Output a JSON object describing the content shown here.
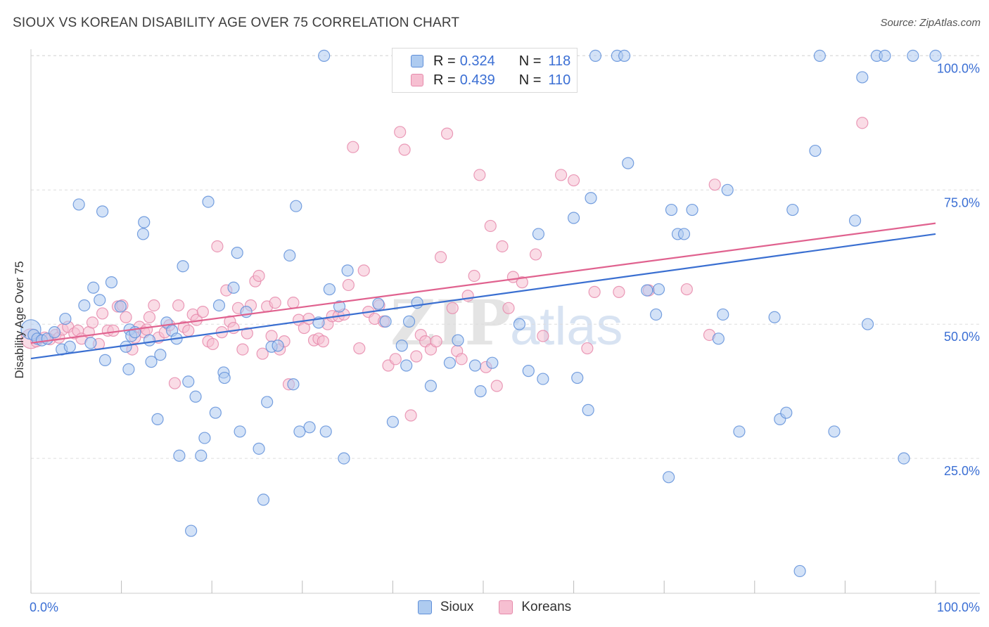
{
  "title": "SIOUX VS KOREAN DISABILITY AGE OVER 75 CORRELATION CHART",
  "source": "Source: ZipAtlas.com",
  "watermark": {
    "zip": "ZIP",
    "atlas": "atlas"
  },
  "colors": {
    "sioux_fill": "#aecbf0",
    "sioux_stroke": "#5f8fd9",
    "sioux_line": "#3a6fd1",
    "koreans_fill": "#f6bfd1",
    "koreans_stroke": "#e68aab",
    "koreans_line": "#e0628f",
    "axis_text": "#3b6fd4",
    "grid": "#dddddd"
  },
  "legend": {
    "rows": [
      {
        "r_label": "R =",
        "r_value": "0.324",
        "n_label": "N =",
        "n_value": "118"
      },
      {
        "r_label": "R =",
        "r_value": "0.439",
        "n_label": "N =",
        "n_value": "110"
      }
    ]
  },
  "chart_data": {
    "type": "scatter",
    "title": "SIOUX VS KOREAN DISABILITY AGE OVER 75 CORRELATION CHART",
    "xlabel": "",
    "ylabel": "Disability Age Over 75",
    "xlim": [
      0,
      100
    ],
    "ylim": [
      0,
      103
    ],
    "x_tick_labels": [
      "0.0%",
      "100.0%"
    ],
    "y_ticks": [
      25,
      50,
      75,
      100
    ],
    "y_tick_labels": [
      "25.0%",
      "50.0%",
      "75.0%",
      "100.0%"
    ],
    "grid": "horizontal dashed",
    "legend_position": "top-center",
    "series": [
      {
        "name": "Sioux",
        "r": 0.324,
        "n": 118,
        "trend": {
          "x": [
            0,
            100
          ],
          "y": [
            43.6,
            66.8
          ]
        },
        "points": [
          [
            0.0,
            49.0
          ],
          [
            0.3,
            48.0
          ],
          [
            0.7,
            47.3
          ],
          [
            1.2,
            47.0
          ],
          [
            1.8,
            47.3
          ],
          [
            2.6,
            48.5
          ],
          [
            3.4,
            45.3
          ],
          [
            3.8,
            51.0
          ],
          [
            4.3,
            45.8
          ],
          [
            5.3,
            72.3
          ],
          [
            5.9,
            53.5
          ],
          [
            6.6,
            46.5
          ],
          [
            6.9,
            56.8
          ],
          [
            7.6,
            54.5
          ],
          [
            7.9,
            71.0
          ],
          [
            8.2,
            43.3
          ],
          [
            8.9,
            57.8
          ],
          [
            9.9,
            53.3
          ],
          [
            10.5,
            45.8
          ],
          [
            10.8,
            41.6
          ],
          [
            10.9,
            49.0
          ],
          [
            11.1,
            47.8
          ],
          [
            11.5,
            48.5
          ],
          [
            12.4,
            66.8
          ],
          [
            12.5,
            69.0
          ],
          [
            13.1,
            47.0
          ],
          [
            13.3,
            43.0
          ],
          [
            14.0,
            32.3
          ],
          [
            14.3,
            44.3
          ],
          [
            15.0,
            50.3
          ],
          [
            15.6,
            48.8
          ],
          [
            16.1,
            47.3
          ],
          [
            16.4,
            25.5
          ],
          [
            16.8,
            60.8
          ],
          [
            17.4,
            39.3
          ],
          [
            17.7,
            11.5
          ],
          [
            18.2,
            36.5
          ],
          [
            18.8,
            25.5
          ],
          [
            19.2,
            28.8
          ],
          [
            19.6,
            72.8
          ],
          [
            20.4,
            33.5
          ],
          [
            20.8,
            53.5
          ],
          [
            21.3,
            41.0
          ],
          [
            21.4,
            40.0
          ],
          [
            22.4,
            56.8
          ],
          [
            22.8,
            63.3
          ],
          [
            23.1,
            30.0
          ],
          [
            23.8,
            52.3
          ],
          [
            25.2,
            26.8
          ],
          [
            25.7,
            17.3
          ],
          [
            26.1,
            35.5
          ],
          [
            26.6,
            45.8
          ],
          [
            27.3,
            46.0
          ],
          [
            28.6,
            62.8
          ],
          [
            29.0,
            38.8
          ],
          [
            29.3,
            72.0
          ],
          [
            29.7,
            30.0
          ],
          [
            30.8,
            30.8
          ],
          [
            31.8,
            50.3
          ],
          [
            32.4,
            100.0
          ],
          [
            32.6,
            30.0
          ],
          [
            33.0,
            56.5
          ],
          [
            34.1,
            53.3
          ],
          [
            34.6,
            25.0
          ],
          [
            35.0,
            60.0
          ],
          [
            38.4,
            53.8
          ],
          [
            39.2,
            50.5
          ],
          [
            40.0,
            31.8
          ],
          [
            41.0,
            46.0
          ],
          [
            41.5,
            42.3
          ],
          [
            41.8,
            50.5
          ],
          [
            42.7,
            54.0
          ],
          [
            44.2,
            38.5
          ],
          [
            45.0,
            100.0
          ],
          [
            46.3,
            42.8
          ],
          [
            47.2,
            47.0
          ],
          [
            49.1,
            42.3
          ],
          [
            49.7,
            37.5
          ],
          [
            51.0,
            42.8
          ],
          [
            54.0,
            50.0
          ],
          [
            55.0,
            41.3
          ],
          [
            56.1,
            66.8
          ],
          [
            56.6,
            39.8
          ],
          [
            60.0,
            69.8
          ],
          [
            60.4,
            40.0
          ],
          [
            61.6,
            34.0
          ],
          [
            61.9,
            73.5
          ],
          [
            62.4,
            100.0
          ],
          [
            64.8,
            100.0
          ],
          [
            65.6,
            100.0
          ],
          [
            66.0,
            80.0
          ],
          [
            68.1,
            56.3
          ],
          [
            69.1,
            51.8
          ],
          [
            69.4,
            56.5
          ],
          [
            70.5,
            21.5
          ],
          [
            70.8,
            71.3
          ],
          [
            71.5,
            66.8
          ],
          [
            72.2,
            66.8
          ],
          [
            73.1,
            71.3
          ],
          [
            76.0,
            47.3
          ],
          [
            76.5,
            51.8
          ],
          [
            77.0,
            75.0
          ],
          [
            78.3,
            30.0
          ],
          [
            82.2,
            51.3
          ],
          [
            82.8,
            32.3
          ],
          [
            83.5,
            33.5
          ],
          [
            84.2,
            71.3
          ],
          [
            85.0,
            4.0
          ],
          [
            86.7,
            82.3
          ],
          [
            87.2,
            100.0
          ],
          [
            88.8,
            30.0
          ],
          [
            91.1,
            69.3
          ],
          [
            91.9,
            96.0
          ],
          [
            92.5,
            50.0
          ],
          [
            93.5,
            100.0
          ],
          [
            94.4,
            100.0
          ],
          [
            96.5,
            25.0
          ],
          [
            97.5,
            100.0
          ],
          [
            100.0,
            100.0
          ]
        ]
      },
      {
        "name": "Koreans",
        "r": 0.439,
        "n": 110,
        "trend": {
          "x": [
            0,
            100
          ],
          "y": [
            46.5,
            68.8
          ]
        },
        "points": [
          [
            0.0,
            47.3
          ],
          [
            0.6,
            46.8
          ],
          [
            1.5,
            47.5
          ],
          [
            2.1,
            47.2
          ],
          [
            2.7,
            48.0
          ],
          [
            3.1,
            47.5
          ],
          [
            3.5,
            49.0
          ],
          [
            4.1,
            49.5
          ],
          [
            4.8,
            48.3
          ],
          [
            5.2,
            48.8
          ],
          [
            5.6,
            47.3
          ],
          [
            6.4,
            48.5
          ],
          [
            6.8,
            50.3
          ],
          [
            7.5,
            46.3
          ],
          [
            7.9,
            52.0
          ],
          [
            8.5,
            48.8
          ],
          [
            9.1,
            48.8
          ],
          [
            9.6,
            53.3
          ],
          [
            10.1,
            53.5
          ],
          [
            10.5,
            51.3
          ],
          [
            11.2,
            45.3
          ],
          [
            11.5,
            47.5
          ],
          [
            12.0,
            49.5
          ],
          [
            12.5,
            48.5
          ],
          [
            12.8,
            49.0
          ],
          [
            13.1,
            51.3
          ],
          [
            13.6,
            53.5
          ],
          [
            14.1,
            47.5
          ],
          [
            14.8,
            48.5
          ],
          [
            15.3,
            49.8
          ],
          [
            15.9,
            39.0
          ],
          [
            16.3,
            53.5
          ],
          [
            16.9,
            49.5
          ],
          [
            17.4,
            48.8
          ],
          [
            17.9,
            51.8
          ],
          [
            18.3,
            50.8
          ],
          [
            19.0,
            52.3
          ],
          [
            19.6,
            46.8
          ],
          [
            20.1,
            46.3
          ],
          [
            20.6,
            64.5
          ],
          [
            21.1,
            48.5
          ],
          [
            21.6,
            56.3
          ],
          [
            22.0,
            50.5
          ],
          [
            22.4,
            49.3
          ],
          [
            22.9,
            53.0
          ],
          [
            23.4,
            45.3
          ],
          [
            23.9,
            48.3
          ],
          [
            24.3,
            53.5
          ],
          [
            24.8,
            58.0
          ],
          [
            25.2,
            59.0
          ],
          [
            25.6,
            44.5
          ],
          [
            26.1,
            53.3
          ],
          [
            26.6,
            47.8
          ],
          [
            27.0,
            54.0
          ],
          [
            27.5,
            45.3
          ],
          [
            28.0,
            46.8
          ],
          [
            28.5,
            38.8
          ],
          [
            29.0,
            54.0
          ],
          [
            29.6,
            50.8
          ],
          [
            30.2,
            49.3
          ],
          [
            30.7,
            51.0
          ],
          [
            31.3,
            47.0
          ],
          [
            31.8,
            47.3
          ],
          [
            32.3,
            46.8
          ],
          [
            32.8,
            50.0
          ],
          [
            33.3,
            51.5
          ],
          [
            34.0,
            51.5
          ],
          [
            34.6,
            51.8
          ],
          [
            35.1,
            57.3
          ],
          [
            35.6,
            83.0
          ],
          [
            36.3,
            45.5
          ],
          [
            36.8,
            60.0
          ],
          [
            37.3,
            52.3
          ],
          [
            38.0,
            51.0
          ],
          [
            38.5,
            53.5
          ],
          [
            39.0,
            50.5
          ],
          [
            39.5,
            42.3
          ],
          [
            40.3,
            43.5
          ],
          [
            40.8,
            85.8
          ],
          [
            41.3,
            82.5
          ],
          [
            42.0,
            33.0
          ],
          [
            42.6,
            44.0
          ],
          [
            43.1,
            48.0
          ],
          [
            43.6,
            46.8
          ],
          [
            44.2,
            45.3
          ],
          [
            44.8,
            46.8
          ],
          [
            45.3,
            62.5
          ],
          [
            46.0,
            85.5
          ],
          [
            46.6,
            53.0
          ],
          [
            47.1,
            45.0
          ],
          [
            47.6,
            43.5
          ],
          [
            48.3,
            55.3
          ],
          [
            49.0,
            59.0
          ],
          [
            49.6,
            77.8
          ],
          [
            50.3,
            42.0
          ],
          [
            50.8,
            68.3
          ],
          [
            51.5,
            38.5
          ],
          [
            52.1,
            64.5
          ],
          [
            52.8,
            53.0
          ],
          [
            53.3,
            58.8
          ],
          [
            54.3,
            57.8
          ],
          [
            55.8,
            63.0
          ],
          [
            56.6,
            47.8
          ],
          [
            58.6,
            77.8
          ],
          [
            60.0,
            76.8
          ],
          [
            61.5,
            45.5
          ],
          [
            62.3,
            56.0
          ],
          [
            65.0,
            56.0
          ],
          [
            68.3,
            56.3
          ],
          [
            72.5,
            56.5
          ],
          [
            75.0,
            48.0
          ],
          [
            75.6,
            76.0
          ],
          [
            91.9,
            87.5
          ]
        ]
      }
    ]
  }
}
